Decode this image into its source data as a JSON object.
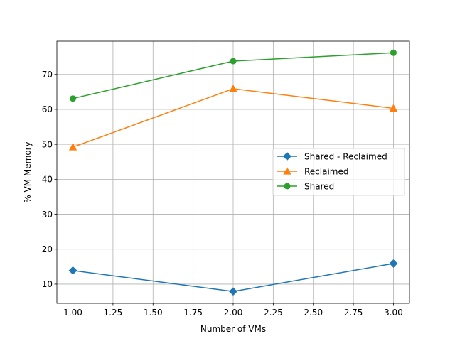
{
  "chart_data": {
    "type": "line",
    "title": "",
    "xlabel": "Number of VMs",
    "ylabel": "% VM Memory",
    "xlim": [
      0.9,
      3.1
    ],
    "ylim": [
      4.5,
      79.5
    ],
    "xticks": [
      1.0,
      1.25,
      1.5,
      1.75,
      2.0,
      2.25,
      2.5,
      2.75,
      3.0
    ],
    "xtick_labels": [
      "1.00",
      "1.25",
      "1.50",
      "1.75",
      "2.00",
      "2.25",
      "2.50",
      "2.75",
      "3.00"
    ],
    "yticks": [
      10,
      20,
      30,
      40,
      50,
      60,
      70
    ],
    "ytick_labels": [
      "10",
      "20",
      "30",
      "40",
      "50",
      "60",
      "70"
    ],
    "grid": true,
    "legend_position": "center-right",
    "x": [
      1,
      2,
      3
    ],
    "series": [
      {
        "name": "Shared - Reclaimed",
        "values": [
          13.9,
          7.9,
          15.9
        ],
        "color": "#1f77b4",
        "marker": "diamond"
      },
      {
        "name": "Reclaimed",
        "values": [
          49.2,
          65.9,
          60.3
        ],
        "color": "#ff7f0e",
        "marker": "triangle"
      },
      {
        "name": "Shared",
        "values": [
          63.1,
          73.8,
          76.2
        ],
        "color": "#2ca02c",
        "marker": "circle"
      }
    ]
  }
}
